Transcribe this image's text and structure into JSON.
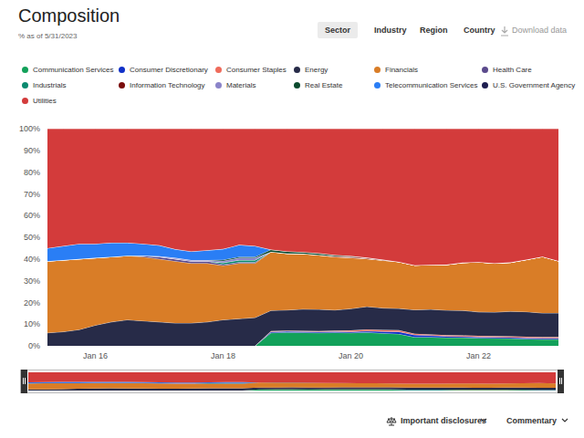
{
  "page": {
    "tabs": [
      "Sector",
      "Industry",
      "Region",
      "Country"
    ],
    "selected_tab": "Sector",
    "download": "Download data",
    "footer": [
      "Important disclosures",
      "Commentary"
    ]
  },
  "chart_data": {
    "type": "area",
    "stacked": true,
    "title": "Composition",
    "subtitle": "% as of 5/31/2023",
    "legend": "top",
    "categories": [
      null,
      null,
      null,
      "Jan 16",
      null,
      null,
      null,
      null,
      null,
      null,
      null,
      "Jan 18",
      null,
      null,
      null,
      null,
      null,
      null,
      null,
      "Jan 20",
      null,
      null,
      null,
      null,
      null,
      null,
      null,
      "Jan 22",
      null,
      null,
      null,
      null,
      null
    ],
    "ylim": [
      0,
      100
    ],
    "yticks": [
      {
        "value": 0,
        "label": "0%"
      },
      {
        "value": 10,
        "label": "10%"
      },
      {
        "value": 20,
        "label": "20%"
      },
      {
        "value": 30,
        "label": "30%"
      },
      {
        "value": 40,
        "label": "40%"
      },
      {
        "value": 50,
        "label": "50%"
      },
      {
        "value": 60,
        "label": "60%"
      },
      {
        "value": 70,
        "label": "70%"
      },
      {
        "value": 80,
        "label": "80%"
      },
      {
        "value": 90,
        "label": "90%"
      },
      {
        "value": 100,
        "label": "100%"
      }
    ],
    "series": [
      {
        "name": "Communication Services",
        "color": "#12a15a",
        "values": [
          0,
          0,
          0,
          0,
          0,
          0,
          0,
          0,
          0,
          0,
          0,
          0,
          0,
          0,
          6.0,
          6.2,
          6.1,
          6.0,
          6.1,
          6.0,
          6.2,
          5.8,
          5.5,
          4.0,
          4.0,
          3.8,
          3.8,
          3.6,
          3.5,
          3.4,
          3.2,
          3.0,
          3.0
        ]
      },
      {
        "name": "Consumer Discretionary",
        "color": "#1030c8",
        "values": [
          0,
          0,
          0,
          0,
          0,
          0,
          0,
          0,
          0,
          0,
          0,
          0,
          0,
          0,
          0.5,
          0.5,
          0.5,
          0.5,
          0.5,
          0.5,
          0.6,
          0.8,
          1.0,
          1.0,
          0.8,
          0.6,
          0.5,
          0.5,
          0.5,
          0.5,
          0.5,
          0.6,
          0.6
        ]
      },
      {
        "name": "Consumer Staples",
        "color": "#ef6b5b",
        "values": [
          0,
          0,
          0,
          0,
          0,
          0,
          0,
          0,
          0,
          0,
          0,
          0,
          0,
          0,
          0.3,
          0.3,
          0.3,
          0.3,
          0.4,
          0.6,
          0.8,
          0.8,
          0.7,
          0.6,
          0.5,
          0.5,
          0.5,
          0.5,
          0.5,
          0.5,
          0.5,
          0.5,
          0.5
        ]
      },
      {
        "name": "Energy",
        "color": "#272b48",
        "values": [
          6.0,
          6.5,
          7.5,
          9.5,
          11.0,
          12.0,
          11.5,
          11.0,
          10.5,
          10.5,
          11.0,
          12.0,
          12.5,
          13.0,
          9.5,
          9.5,
          10.0,
          10.0,
          9.5,
          10.0,
          10.5,
          10.0,
          10.0,
          11.0,
          11.5,
          11.5,
          11.5,
          11.0,
          11.0,
          11.5,
          11.5,
          11.0,
          11.0
        ]
      },
      {
        "name": "Financials",
        "color": "#d97d27",
        "values": [
          33.0,
          33.0,
          32.5,
          31.0,
          30.0,
          29.5,
          29.5,
          29.0,
          28.5,
          27.5,
          27.0,
          25.0,
          25.5,
          25.0,
          27.0,
          26.0,
          25.5,
          25.0,
          24.5,
          23.5,
          22.0,
          22.0,
          21.5,
          20.5,
          20.5,
          21.0,
          22.0,
          23.0,
          22.5,
          22.5,
          24.0,
          26.0,
          24.0
        ]
      },
      {
        "name": "Health Care",
        "color": "#5b4a8c",
        "values": [
          0,
          0,
          0,
          0,
          0,
          0,
          0.5,
          1.0,
          1.0,
          1.0,
          1.0,
          0.5,
          0.5,
          0.5,
          0,
          0,
          0,
          0,
          0,
          0,
          0,
          0,
          0,
          0,
          0,
          0,
          0,
          0,
          0,
          0,
          0,
          0,
          0
        ]
      },
      {
        "name": "Industrials",
        "color": "#0b8a6f",
        "values": [
          0,
          0,
          0,
          0,
          0,
          0,
          0,
          0,
          0,
          0,
          0,
          0.8,
          1.0,
          1.0,
          0,
          0,
          0,
          0,
          0,
          0,
          0,
          0,
          0,
          0,
          0,
          0,
          0,
          0,
          0,
          0,
          0,
          0,
          0
        ]
      },
      {
        "name": "Information Technology",
        "color": "#7a0c0c",
        "values": [
          0,
          0,
          0,
          0,
          0,
          0,
          0,
          0,
          0,
          0,
          0,
          0,
          0,
          0,
          0,
          0,
          0,
          0,
          0.3,
          0.5,
          0.5,
          0.3,
          0,
          0,
          0,
          0,
          0,
          0,
          0,
          0,
          0,
          0,
          0
        ]
      },
      {
        "name": "Materials",
        "color": "#8b84c9",
        "values": [
          0,
          0,
          0,
          0,
          0,
          0,
          0,
          0.3,
          0.5,
          0.5,
          0.5,
          0.8,
          1.0,
          1.0,
          0,
          0,
          0,
          0,
          0,
          0,
          0,
          0,
          0,
          0,
          0,
          0,
          0,
          0,
          0,
          0,
          0,
          0,
          0
        ]
      },
      {
        "name": "Real Estate",
        "color": "#0c4a2e",
        "values": [
          0,
          0,
          0,
          0,
          0,
          0,
          0,
          0,
          0,
          0,
          0,
          0.5,
          0.5,
          0.5,
          1.0,
          1.0,
          0.8,
          0.8,
          0.5,
          0.3,
          0,
          0,
          0,
          0,
          0,
          0,
          0,
          0,
          0,
          0,
          0,
          0,
          0
        ]
      },
      {
        "name": "Telecommunication Services",
        "color": "#2a7ef5",
        "values": [
          6.0,
          6.5,
          7.0,
          6.5,
          6.5,
          6.0,
          5.5,
          5.0,
          4.0,
          4.0,
          4.5,
          5.0,
          5.5,
          5.0,
          0,
          0,
          0,
          0,
          0,
          0,
          0,
          0,
          0,
          0,
          0,
          0,
          0,
          0,
          0,
          0,
          0,
          0,
          0
        ]
      },
      {
        "name": "U.S. Government Agency",
        "color": "#1e1e50",
        "values": [
          0,
          0,
          0,
          0,
          0,
          0,
          0,
          0,
          0,
          0,
          0,
          0,
          0,
          0,
          0,
          0,
          0,
          0,
          0,
          0,
          0,
          0,
          0,
          0,
          0,
          0,
          0,
          0,
          0,
          0,
          0,
          0,
          0
        ]
      },
      {
        "name": "Utilities",
        "color": "#d33b3b",
        "values": [
          55,
          54,
          53,
          53,
          52.5,
          52.5,
          53,
          53.7,
          55.5,
          56.5,
          56,
          55.4,
          53.5,
          54,
          55.7,
          56.5,
          56.8,
          57.4,
          58.2,
          58.6,
          59.4,
          60.3,
          61.3,
          62.9,
          62.7,
          62.6,
          61.7,
          61.4,
          62,
          61.6,
          60.3,
          58.9,
          60.9
        ]
      }
    ]
  }
}
